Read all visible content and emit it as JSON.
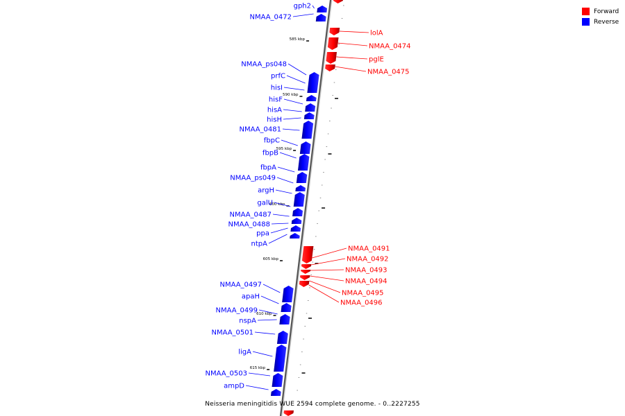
{
  "title": "Neisseria meningitidis WUE 2594 complete genome. - 0..2227255",
  "legend": [
    {
      "label": "Forward",
      "color": "#ff0000"
    },
    {
      "label": "Reverse",
      "color": "#0000ff"
    }
  ],
  "colors": {
    "forward": "#ff0000",
    "reverse": "#0000ff",
    "axis": "#555555",
    "tick": "#000000"
  },
  "ruler": [
    "585 kbp",
    "590 kbp",
    "595 kbp",
    "600 kbp",
    "605 kbp",
    "610 kbp",
    "615 kbp"
  ],
  "reverse_genes": [
    "gph2",
    "NMAA_0472",
    "NMAA_ps048",
    "prfC",
    "hisI",
    "hisF",
    "hisA",
    "hisH",
    "NMAA_0481",
    "fbpC",
    "fbpB",
    "fbpA",
    "NMAA_ps049",
    "argH",
    "galU",
    "NMAA_0487",
    "NMAA_0488",
    "ppa",
    "ntpA",
    "NMAA_0497",
    "apaH",
    "NMAA_0499",
    "nspA",
    "NMAA_0501",
    "ligA",
    "NMAA_0503",
    "ampD"
  ],
  "forward_genes": [
    "lolA",
    "NMAA_0474",
    "pglE",
    "NMAA_0475",
    "NMAA_0491",
    "NMAA_0492",
    "NMAA_0493",
    "NMAA_0494",
    "NMAA_0495",
    "NMAA_0496"
  ]
}
